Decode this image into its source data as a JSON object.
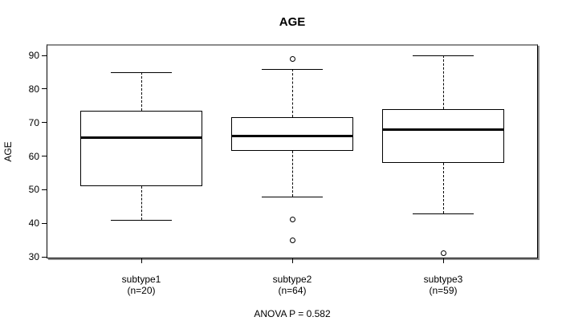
{
  "colors": {
    "background": "#ffffff",
    "line": "#000000",
    "frame_shadow": "#8c8c8c",
    "text": "#000000"
  },
  "chart_data": {
    "type": "boxplot",
    "title": "AGE",
    "ylabel": "AGE",
    "xlabel": "",
    "footer": "ANOVA P = 0.582",
    "ylim": [
      30,
      90
    ],
    "y_ticks": [
      30,
      40,
      50,
      60,
      70,
      80,
      90
    ],
    "grid": false,
    "legend": "none",
    "categories": [
      "subtype1",
      "subtype2",
      "subtype3"
    ],
    "groups": [
      {
        "label": "subtype1",
        "n_label": "(n=20)",
        "whisker_low": 41,
        "q1": 51,
        "median": 65.5,
        "q3": 73.5,
        "whisker_high": 85,
        "outliers": []
      },
      {
        "label": "subtype2",
        "n_label": "(n=64)",
        "whisker_low": 48,
        "q1": 61.5,
        "median": 66,
        "q3": 71.5,
        "whisker_high": 86,
        "outliers": [
          89,
          41,
          35
        ]
      },
      {
        "label": "subtype3",
        "n_label": "(n=59)",
        "whisker_low": 43,
        "q1": 58,
        "median": 68,
        "q3": 74,
        "whisker_high": 90,
        "outliers": [
          31
        ]
      }
    ]
  }
}
